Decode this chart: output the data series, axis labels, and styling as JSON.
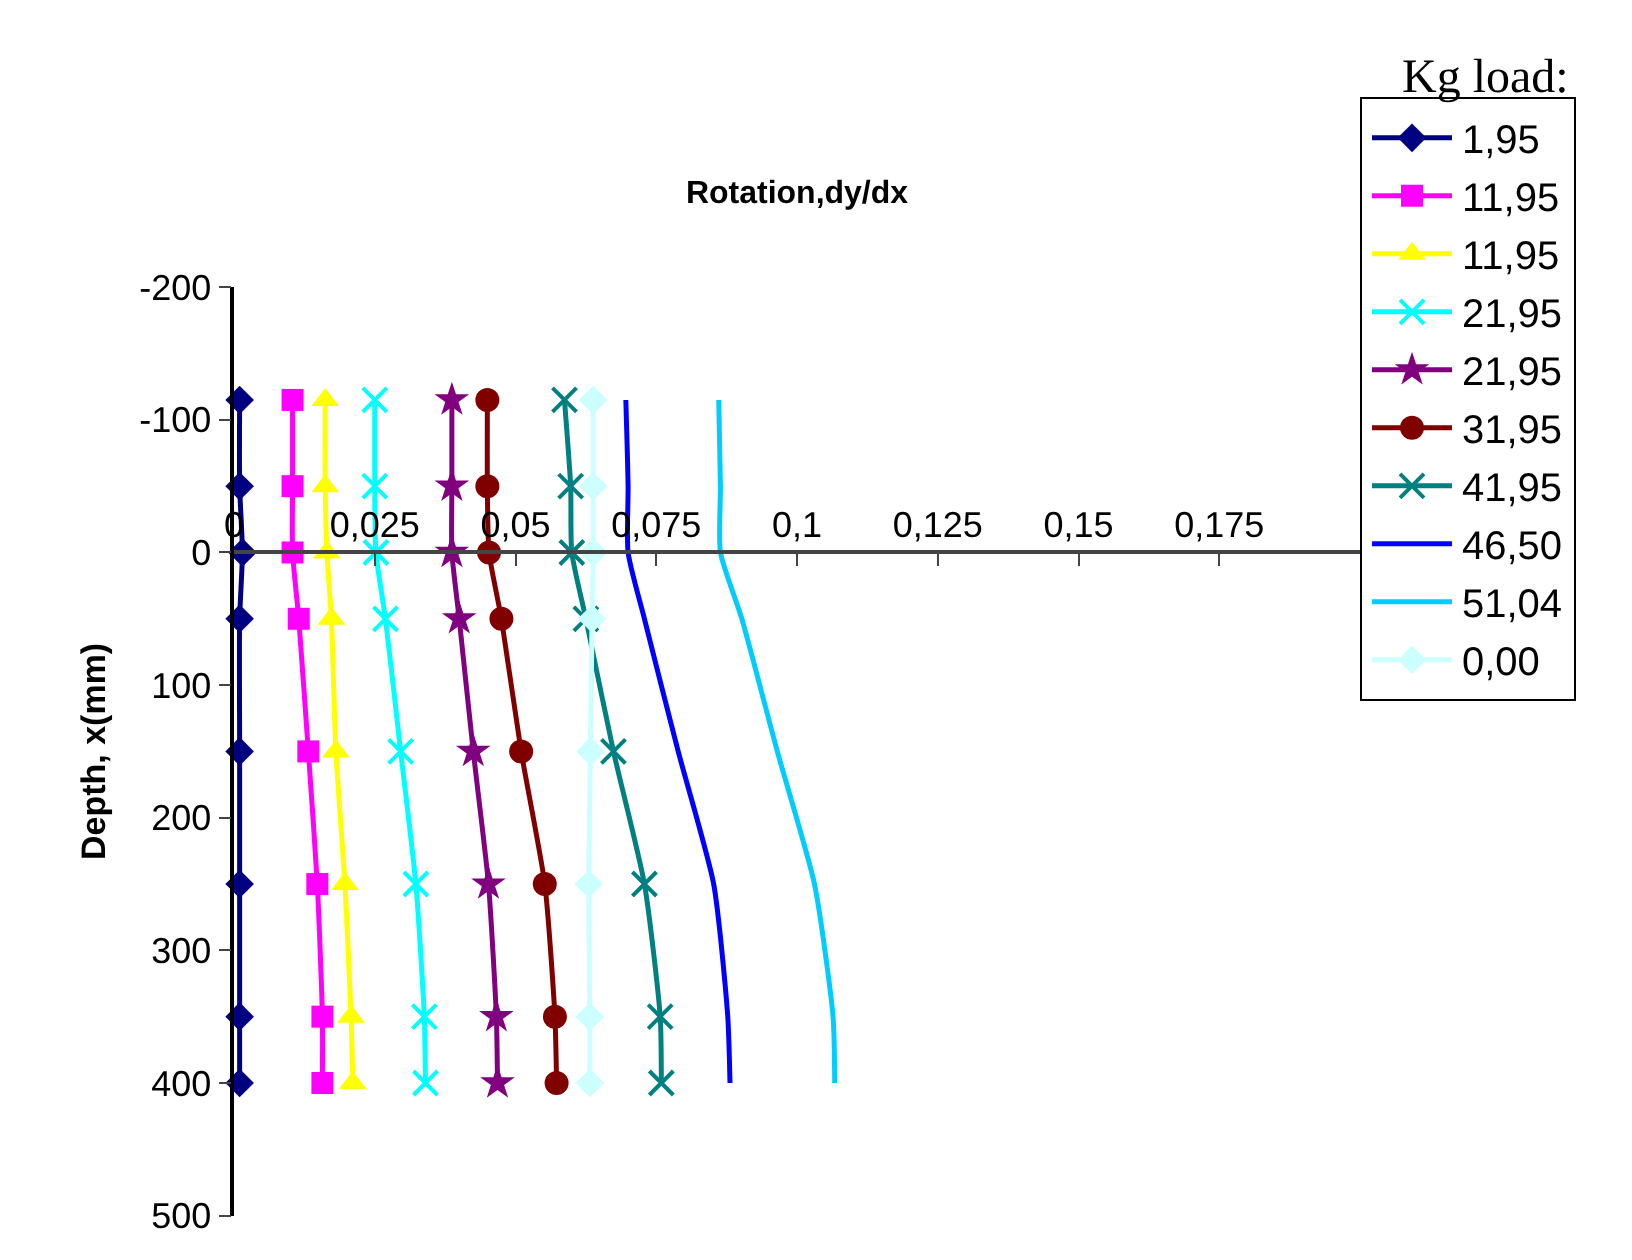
{
  "chart_data": {
    "type": "line",
    "title": "Rotation,dy/dx",
    "ylabel": "Depth, x(mm)",
    "legend_title": "Kg load:",
    "legend": "right",
    "xlim": [
      0,
      0.2
    ],
    "xticks": [
      0,
      {
        "value": 0.025,
        "label": "0,025"
      },
      {
        "value": 0.05,
        "label": "0,05"
      },
      {
        "value": 0.075,
        "label": "0,075"
      },
      {
        "value": 0.1,
        "label": "0,1"
      },
      {
        "value": 0.125,
        "label": "0,125"
      },
      {
        "value": 0.15,
        "label": "0,15"
      },
      {
        "value": 0.175,
        "label": "0,175"
      }
    ],
    "ylim": [
      500,
      -200
    ],
    "yticks": [
      -200,
      -100,
      0,
      100,
      200,
      300,
      400,
      500
    ],
    "line_style": "solid",
    "series": [
      {
        "name": "1,95",
        "color": "#000080",
        "marker": "diamond",
        "values": [
          -115,
          -50,
          0,
          50,
          150,
          250,
          350,
          400
        ],
        "x": [
          0.001,
          0.001,
          0.0015,
          0.001,
          0.001,
          0.001,
          0.001,
          0.001
        ]
      },
      {
        "name": "11,95",
        "color": "#ff00ff",
        "marker": "square",
        "values": [
          -115,
          -50,
          0,
          50,
          150,
          250,
          350,
          400
        ],
        "x": [
          0.0104,
          0.0104,
          0.0104,
          0.0115,
          0.0132,
          0.0148,
          0.0157,
          0.0157
        ]
      },
      {
        "name": "11,95",
        "color": "#ffff00",
        "marker": "triangle",
        "values": [
          -115,
          -50,
          0,
          50,
          150,
          250,
          350,
          400
        ],
        "x": [
          0.0162,
          0.0162,
          0.0165,
          0.0173,
          0.0181,
          0.0197,
          0.0208,
          0.0211
        ]
      },
      {
        "name": "21,95",
        "color": "#00ffff",
        "marker": "cross",
        "values": [
          -115,
          -50,
          0,
          50,
          150,
          250,
          350,
          400
        ],
        "x": [
          0.025,
          0.025,
          0.0252,
          0.0269,
          0.0296,
          0.0323,
          0.0338,
          0.034
        ]
      },
      {
        "name": "21,95",
        "color": "#800080",
        "marker": "star",
        "values": [
          -115,
          -50,
          0,
          50,
          150,
          250,
          350,
          400
        ],
        "x": [
          0.0387,
          0.0387,
          0.0387,
          0.04,
          0.0425,
          0.0452,
          0.0466,
          0.0468
        ]
      },
      {
        "name": "31,95",
        "color": "#800000",
        "marker": "circle",
        "values": [
          -115,
          -50,
          0,
          50,
          150,
          250,
          350,
          400
        ],
        "x": [
          0.045,
          0.045,
          0.0453,
          0.0475,
          0.051,
          0.0552,
          0.057,
          0.0573
        ]
      },
      {
        "name": "41,95",
        "color": "#008080",
        "marker": "cross",
        "values": [
          -115,
          -50,
          0,
          50,
          150,
          250,
          350,
          400
        ],
        "x": [
          0.0587,
          0.0598,
          0.06,
          0.0625,
          0.0674,
          0.0729,
          0.0757,
          0.0759
        ]
      },
      {
        "name": "46,50",
        "color": "#0000ff",
        "marker": "none",
        "values": [
          -115,
          -50,
          0,
          50,
          150,
          250,
          350,
          400
        ],
        "x": [
          0.0696,
          0.07,
          0.07,
          0.0729,
          0.0789,
          0.0852,
          0.0877,
          0.0881
        ]
      },
      {
        "name": "51,04",
        "color": "#00ccff",
        "marker": "none",
        "values": [
          -115,
          -50,
          0,
          50,
          150,
          250,
          350,
          400
        ],
        "x": [
          0.0861,
          0.0864,
          0.0864,
          0.0902,
          0.0965,
          0.1031,
          0.1064,
          0.1067
        ]
      },
      {
        "name": "0,00",
        "color": "#ccffff",
        "marker": "diamond",
        "values": [
          -115,
          -50,
          0,
          50,
          150,
          250,
          350,
          400
        ],
        "x": [
          0.0638,
          0.0638,
          0.0638,
          0.0636,
          0.0633,
          0.063,
          0.0632,
          0.0632
        ]
      }
    ]
  }
}
